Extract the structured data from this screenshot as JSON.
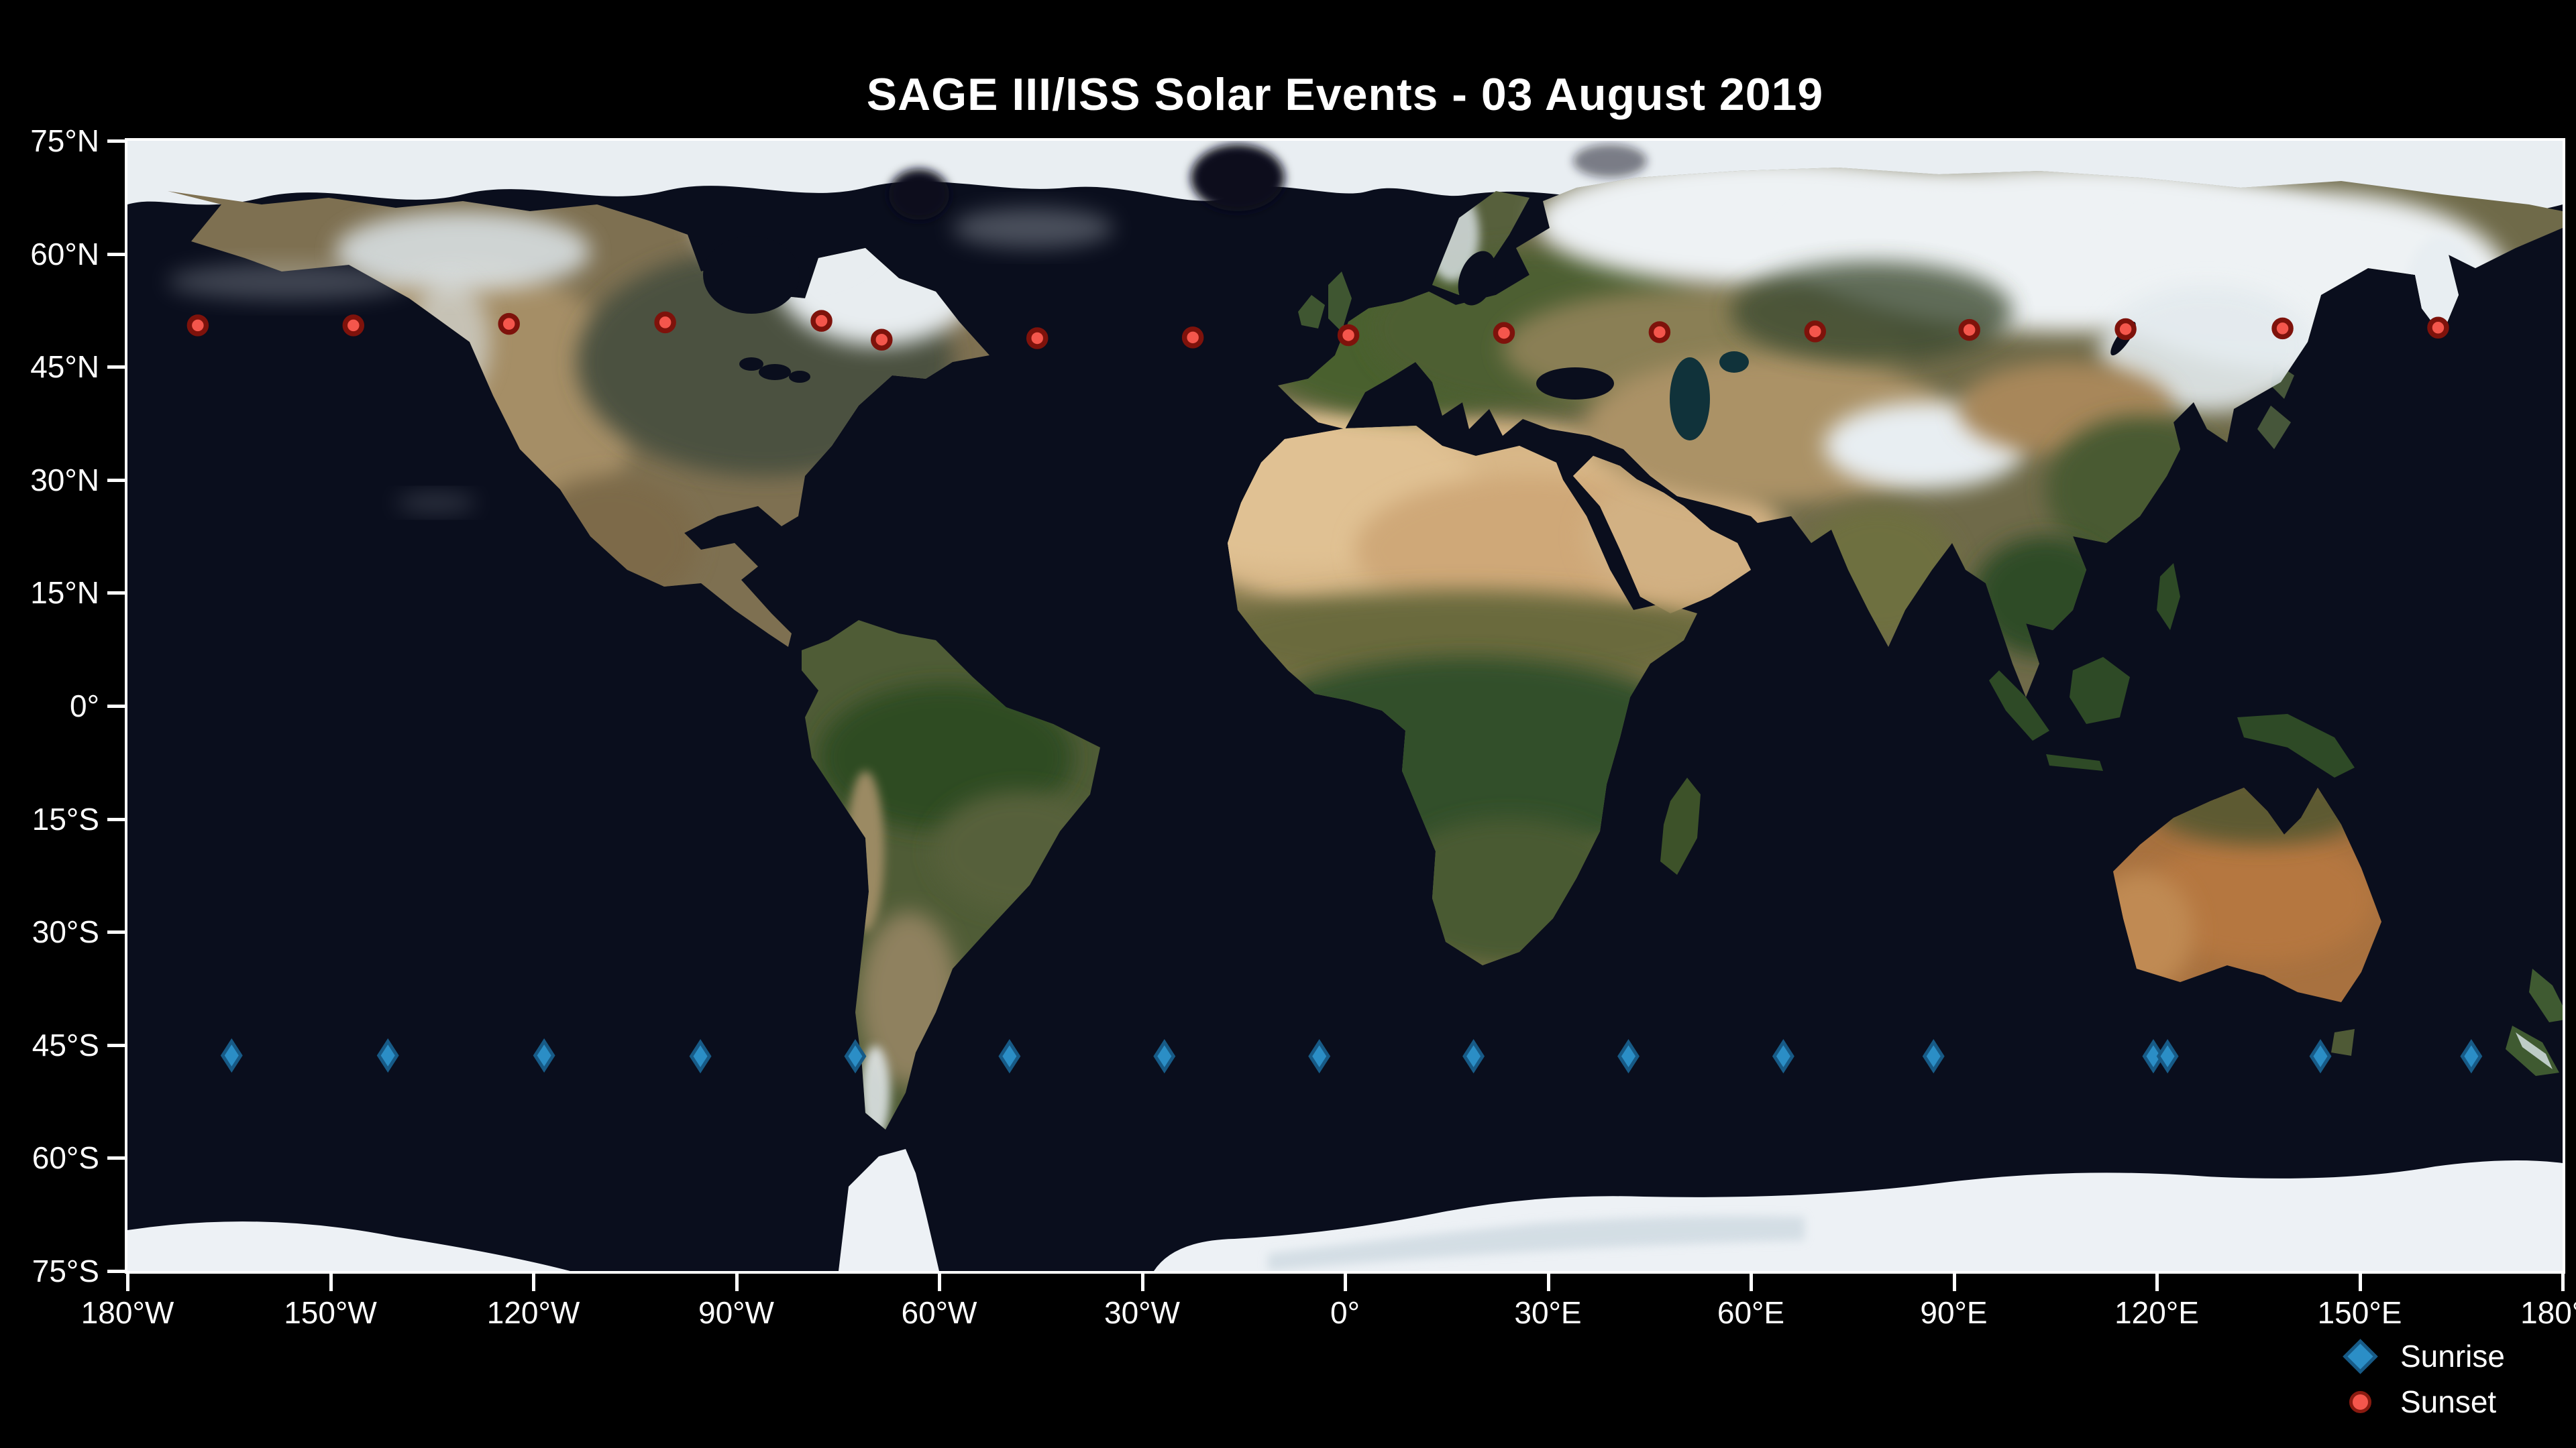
{
  "title": "SAGE III/ISS Solar Events - 03 August 2019",
  "colors": {
    "background": "#000000",
    "ocean": "#0a0e1d",
    "axis": "#ffffff",
    "text": "#ffffff",
    "sunrise_fill": "#2b8ec6",
    "sunrise_edge": "#175a86",
    "sunset_fill": "#f4564c",
    "sunset_edge": "#7e120b"
  },
  "legend": {
    "items": [
      {
        "label": "Sunrise",
        "marker": "diamond"
      },
      {
        "label": "Sunset",
        "marker": "circle"
      }
    ]
  },
  "chart_data": {
    "type": "scatter",
    "title": "SAGE III/ISS Solar Events - 03 August 2019",
    "basemap": "satellite world map, equirectangular",
    "lon_lim": [
      -180,
      180
    ],
    "lat_lim": [
      -75,
      75
    ],
    "grid": false,
    "legend_position": "lower right, outside axes",
    "lon_ticks": [
      {
        "label": "180°W",
        "value": -180
      },
      {
        "label": "150°W",
        "value": -150
      },
      {
        "label": "120°W",
        "value": -120
      },
      {
        "label": "90°W",
        "value": -90
      },
      {
        "label": "60°W",
        "value": -60
      },
      {
        "label": "30°W",
        "value": -30
      },
      {
        "label": "0°",
        "value": 0
      },
      {
        "label": "30°E",
        "value": 30
      },
      {
        "label": "60°E",
        "value": 60
      },
      {
        "label": "90°E",
        "value": 90
      },
      {
        "label": "120°E",
        "value": 120
      },
      {
        "label": "150°E",
        "value": 150
      },
      {
        "label": "180°E",
        "value": 180
      }
    ],
    "lat_ticks": [
      {
        "label": "75°N",
        "value": 75
      },
      {
        "label": "60°N",
        "value": 60
      },
      {
        "label": "45°N",
        "value": 45
      },
      {
        "label": "30°N",
        "value": 30
      },
      {
        "label": "15°N",
        "value": 15
      },
      {
        "label": "0°",
        "value": 0
      },
      {
        "label": "15°S",
        "value": -15
      },
      {
        "label": "30°S",
        "value": -30
      },
      {
        "label": "45°S",
        "value": -45
      },
      {
        "label": "60°S",
        "value": -60
      },
      {
        "label": "75°S",
        "value": -75
      }
    ],
    "series": [
      {
        "name": "Sunrise",
        "marker": "diamond",
        "color": "#2b8ec6",
        "points": [
          {
            "lon": -164.6,
            "lat": -46.4
          },
          {
            "lon": -141.5,
            "lat": -46.4
          },
          {
            "lon": -118.4,
            "lat": -46.4
          },
          {
            "lon": -95.3,
            "lat": -46.5
          },
          {
            "lon": -72.4,
            "lat": -46.5
          },
          {
            "lon": -49.6,
            "lat": -46.5
          },
          {
            "lon": -26.7,
            "lat": -46.5
          },
          {
            "lon": -3.8,
            "lat": -46.5
          },
          {
            "lon": 19.0,
            "lat": -46.5
          },
          {
            "lon": 41.9,
            "lat": -46.5
          },
          {
            "lon": 64.8,
            "lat": -46.5
          },
          {
            "lon": 87.0,
            "lat": -46.5
          },
          {
            "lon": 119.5,
            "lat": -46.5
          },
          {
            "lon": 121.6,
            "lat": -46.5
          },
          {
            "lon": 144.2,
            "lat": -46.5
          },
          {
            "lon": 166.5,
            "lat": -46.5
          }
        ]
      },
      {
        "name": "Sunset",
        "marker": "circle",
        "color": "#f4564c",
        "points": [
          {
            "lon": -169.6,
            "lat": 50.5
          },
          {
            "lon": -146.6,
            "lat": 50.5
          },
          {
            "lon": -123.6,
            "lat": 50.7
          },
          {
            "lon": -100.5,
            "lat": 50.9
          },
          {
            "lon": -77.4,
            "lat": 51.1
          },
          {
            "lon": -68.5,
            "lat": 48.6
          },
          {
            "lon": -45.5,
            "lat": 48.8
          },
          {
            "lon": -22.5,
            "lat": 48.9
          },
          {
            "lon": 0.5,
            "lat": 49.2
          },
          {
            "lon": 23.5,
            "lat": 49.5
          },
          {
            "lon": 46.5,
            "lat": 49.6
          },
          {
            "lon": 69.5,
            "lat": 49.7
          },
          {
            "lon": 92.3,
            "lat": 49.9
          },
          {
            "lon": 115.4,
            "lat": 50.0
          },
          {
            "lon": 138.6,
            "lat": 50.1
          },
          {
            "lon": 161.6,
            "lat": 50.2
          }
        ]
      }
    ]
  }
}
